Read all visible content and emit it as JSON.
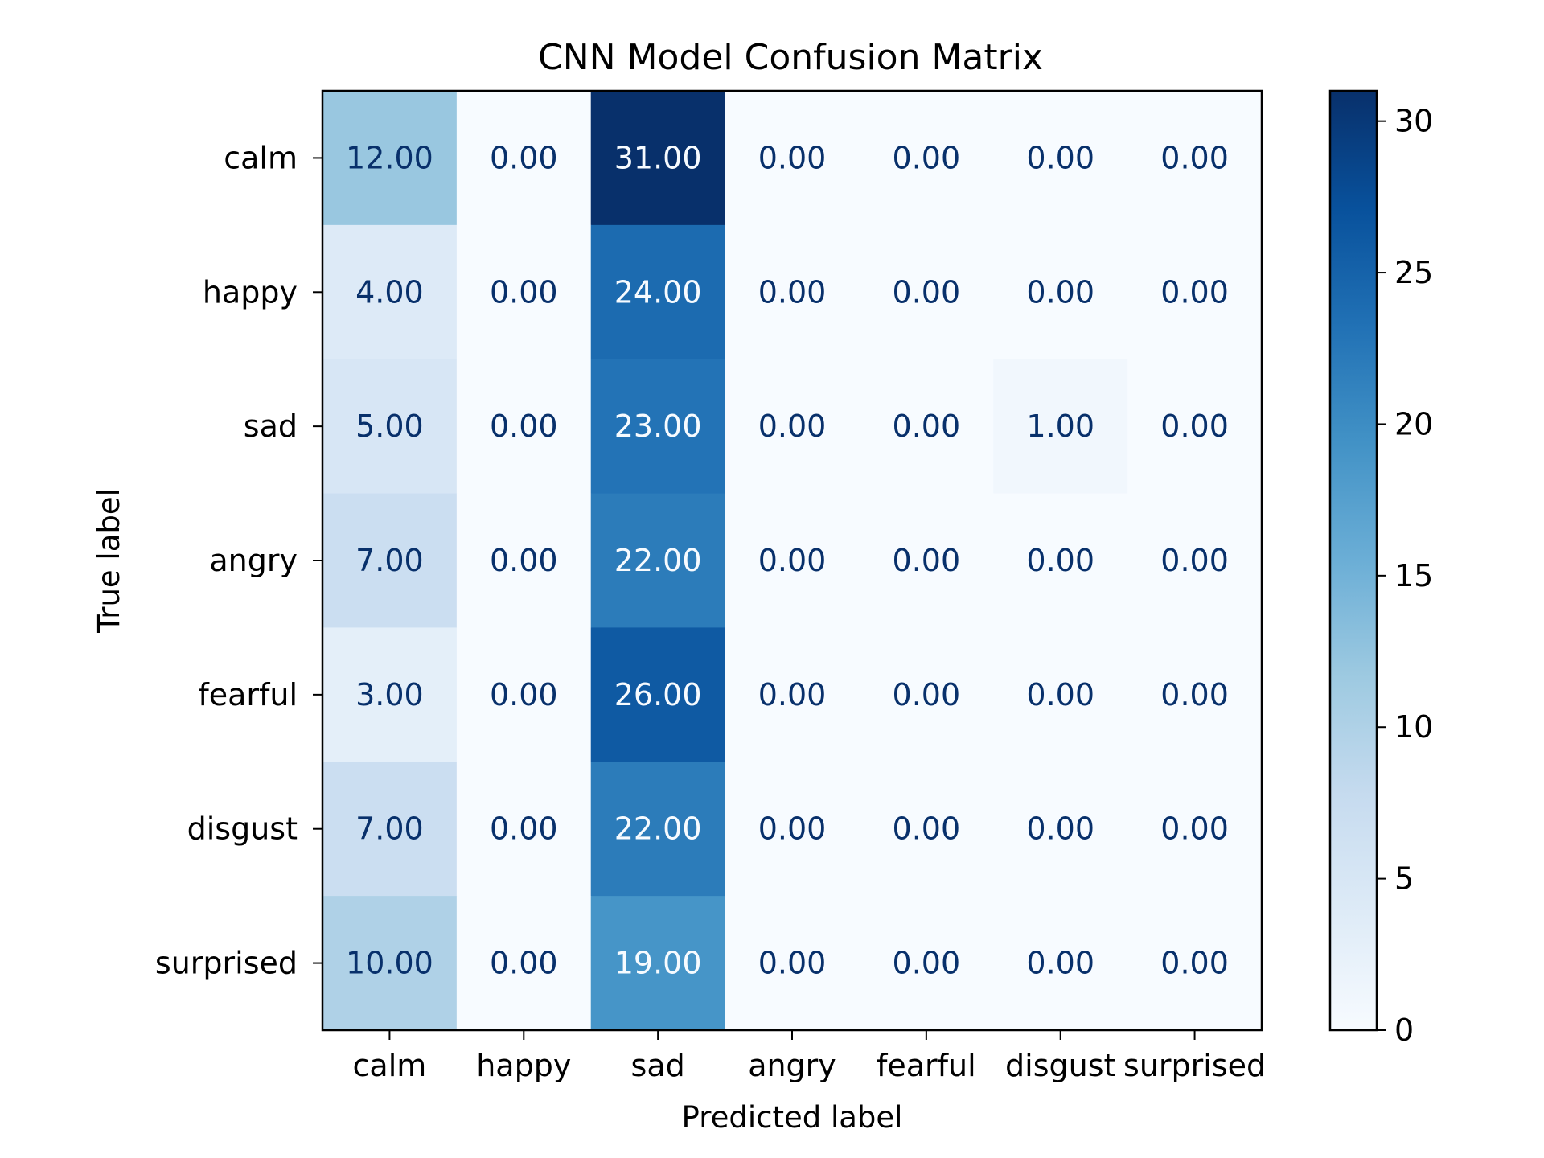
{
  "chart_data": {
    "type": "heatmap",
    "title": "CNN Model Confusion Matrix",
    "xlabel": "Predicted label",
    "ylabel": "True label",
    "x_categories": [
      "calm",
      "happy",
      "sad",
      "angry",
      "fearful",
      "disgust",
      "surprised"
    ],
    "y_categories": [
      "calm",
      "happy",
      "sad",
      "angry",
      "fearful",
      "disgust",
      "surprised"
    ],
    "values": [
      [
        12,
        0,
        31,
        0,
        0,
        0,
        0
      ],
      [
        4,
        0,
        24,
        0,
        0,
        0,
        0
      ],
      [
        5,
        0,
        23,
        0,
        0,
        1,
        0
      ],
      [
        7,
        0,
        22,
        0,
        0,
        0,
        0
      ],
      [
        3,
        0,
        26,
        0,
        0,
        0,
        0
      ],
      [
        7,
        0,
        22,
        0,
        0,
        0,
        0
      ],
      [
        10,
        0,
        19,
        0,
        0,
        0,
        0
      ]
    ],
    "value_format": "0.00",
    "colormap": "Blues",
    "colormap_stops": [
      "#f7fbff",
      "#deebf7",
      "#c6dbef",
      "#9ecae1",
      "#6baed6",
      "#4292c6",
      "#2171b5",
      "#08519c",
      "#08306b"
    ],
    "dark_text_color": "#08306b",
    "light_text_color": "#f7fbff",
    "colorbar": {
      "range": [
        0,
        31
      ],
      "ticks": [
        0,
        5,
        10,
        15,
        20,
        25,
        30
      ],
      "tick_labels": [
        "0",
        "5",
        "10",
        "15",
        "20",
        "25",
        "30"
      ]
    }
  }
}
